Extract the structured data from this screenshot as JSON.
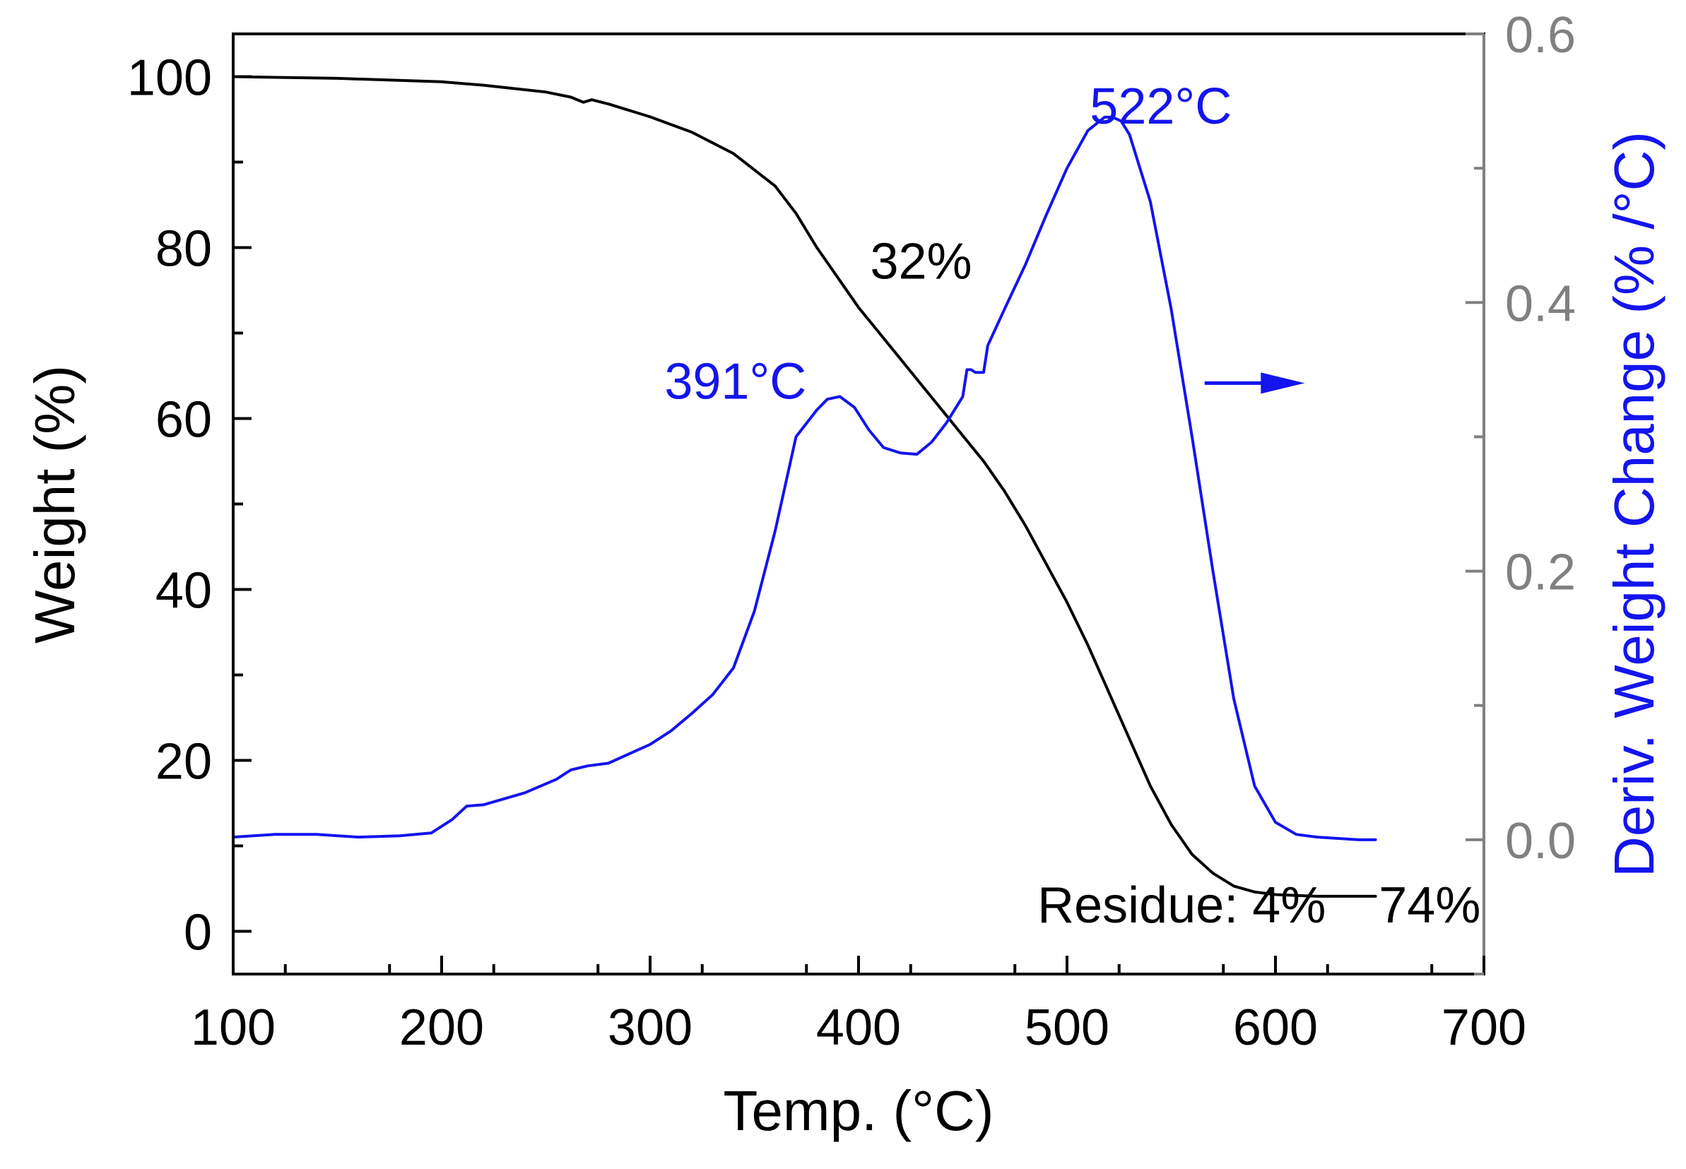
{
  "chart_data": {
    "type": "line",
    "xlabel": "Temp. (°C)",
    "ylabel": "Weight (%)",
    "y2label": "Deriv. Weight Change (% /°C)",
    "xlim": [
      100,
      700
    ],
    "ylim": [
      -5,
      105
    ],
    "y2lim": [
      -0.1,
      0.6
    ],
    "x_ticks": [
      100,
      200,
      300,
      400,
      500,
      600,
      700
    ],
    "y_ticks": [
      0,
      20,
      40,
      60,
      80,
      100
    ],
    "y2_ticks": [
      "0.0",
      "0.2",
      "0.4",
      "0.6"
    ],
    "series": [
      {
        "name": "Weight",
        "axis": "left",
        "color": "#000000",
        "x": [
          100,
          150,
          200,
          220,
          250,
          262,
          268,
          272,
          280,
          300,
          320,
          340,
          360,
          370,
          380,
          390,
          400,
          410,
          420,
          430,
          440,
          450,
          460,
          470,
          480,
          490,
          500,
          510,
          520,
          530,
          540,
          550,
          560,
          570,
          580,
          590,
          600,
          610,
          620,
          630,
          640,
          648
        ],
        "values": [
          100,
          99.8,
          99.4,
          99.0,
          98.2,
          97.6,
          97.0,
          97.3,
          96.8,
          95.3,
          93.5,
          91.0,
          87.2,
          84.0,
          80.0,
          76.5,
          73.0,
          70.0,
          67.0,
          64.0,
          61.0,
          58.0,
          55.0,
          51.5,
          47.5,
          43.0,
          38.5,
          33.5,
          28.0,
          22.5,
          17.0,
          12.5,
          9.0,
          6.8,
          5.3,
          4.6,
          4.3,
          4.2,
          4.1,
          4.1,
          4.1,
          4.1
        ]
      },
      {
        "name": "Deriv. Weight Change",
        "axis": "right",
        "color": "#1414ee",
        "x": [
          100,
          120,
          140,
          150,
          160,
          180,
          195,
          205,
          212,
          220,
          240,
          255,
          262,
          270,
          280,
          290,
          300,
          310,
          320,
          330,
          340,
          350,
          360,
          370,
          380,
          385,
          391,
          398,
          405,
          412,
          420,
          428,
          435,
          442,
          450,
          452,
          454,
          456,
          460,
          462,
          470,
          480,
          490,
          500,
          510,
          518,
          522,
          526,
          530,
          540,
          550,
          560,
          570,
          580,
          590,
          600,
          610,
          620,
          630,
          640,
          648
        ],
        "values": [
          0.002,
          0.004,
          0.004,
          0.003,
          0.002,
          0.003,
          0.005,
          0.015,
          0.025,
          0.026,
          0.035,
          0.045,
          0.052,
          0.055,
          0.057,
          0.064,
          0.071,
          0.081,
          0.094,
          0.108,
          0.128,
          0.17,
          0.23,
          0.3,
          0.32,
          0.328,
          0.33,
          0.322,
          0.305,
          0.292,
          0.288,
          0.287,
          0.296,
          0.31,
          0.33,
          0.35,
          0.35,
          0.348,
          0.348,
          0.368,
          0.395,
          0.428,
          0.465,
          0.5,
          0.528,
          0.538,
          0.538,
          0.535,
          0.525,
          0.475,
          0.395,
          0.3,
          0.2,
          0.105,
          0.04,
          0.013,
          0.004,
          0.002,
          0.001,
          0.0,
          0.0
        ]
      }
    ],
    "annotations": [
      {
        "text": "522°C",
        "x": 545,
        "y2": 0.547,
        "color": "#1414ee",
        "anchor": "middle"
      },
      {
        "text": "391°C",
        "x": 375,
        "y2": 0.342,
        "color": "#1414ee",
        "anchor": "end"
      },
      {
        "text": "32%",
        "x": 430,
        "y": 78.5,
        "color": "#000000",
        "anchor": "middle"
      },
      {
        "text": "Residue: 4%",
        "x": 555,
        "y": 3.2,
        "color": "#000000",
        "anchor": "middle"
      },
      {
        "text": "74%",
        "x": 674,
        "y": 3.2,
        "color": "#000000",
        "anchor": "middle"
      }
    ],
    "arrow": {
      "direction": "right",
      "x_from": 566,
      "x_to": 614,
      "y2": 0.34,
      "color": "#1414ee"
    },
    "grid": false,
    "legend": "none"
  }
}
